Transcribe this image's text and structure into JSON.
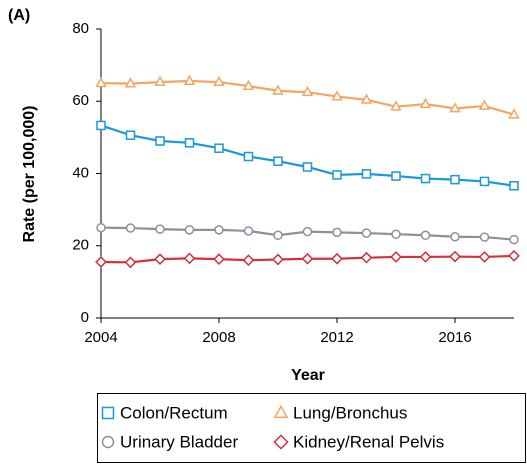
{
  "chart_data": {
    "type": "line",
    "panel_label": "(A)",
    "x_label": "Year",
    "y_label": "Rate (per 100,000)",
    "x": [
      2004,
      2005,
      2006,
      2007,
      2008,
      2009,
      2010,
      2011,
      2012,
      2013,
      2014,
      2015,
      2016,
      2017,
      2018
    ],
    "xlim": [
      2004,
      2018
    ],
    "xticks": [
      2004,
      2008,
      2012,
      2016
    ],
    "ylim": [
      0,
      80
    ],
    "yticks": [
      0,
      20,
      40,
      60,
      80
    ],
    "series": [
      {
        "name": "Colon/Rectum",
        "color": "#1b98d6",
        "marker": "square",
        "values": [
          53.3,
          50.6,
          49.0,
          48.5,
          47.0,
          44.7,
          43.4,
          41.8,
          39.6,
          39.9,
          39.3,
          38.6,
          38.3,
          37.8,
          36.6
        ]
      },
      {
        "name": "Lung/Bronchus",
        "color": "#f5a462",
        "marker": "triangle",
        "values": [
          65.0,
          64.9,
          65.3,
          65.6,
          65.3,
          64.2,
          62.9,
          62.5,
          61.3,
          60.4,
          58.5,
          59.2,
          58.0,
          58.7,
          56.3
        ]
      },
      {
        "name": "Urinary Bladder",
        "color": "#8e8f9c",
        "marker": "circle",
        "values": [
          25.0,
          24.9,
          24.6,
          24.4,
          24.4,
          24.1,
          22.9,
          23.9,
          23.7,
          23.5,
          23.2,
          22.9,
          22.5,
          22.4,
          21.7
        ]
      },
      {
        "name": "Kidney/Renal Pelvis",
        "color": "#d3303b",
        "marker": "diamond",
        "values": [
          15.5,
          15.4,
          16.3,
          16.5,
          16.3,
          16.0,
          16.2,
          16.4,
          16.4,
          16.7,
          16.9,
          16.9,
          17.0,
          16.9,
          17.2
        ]
      }
    ]
  }
}
